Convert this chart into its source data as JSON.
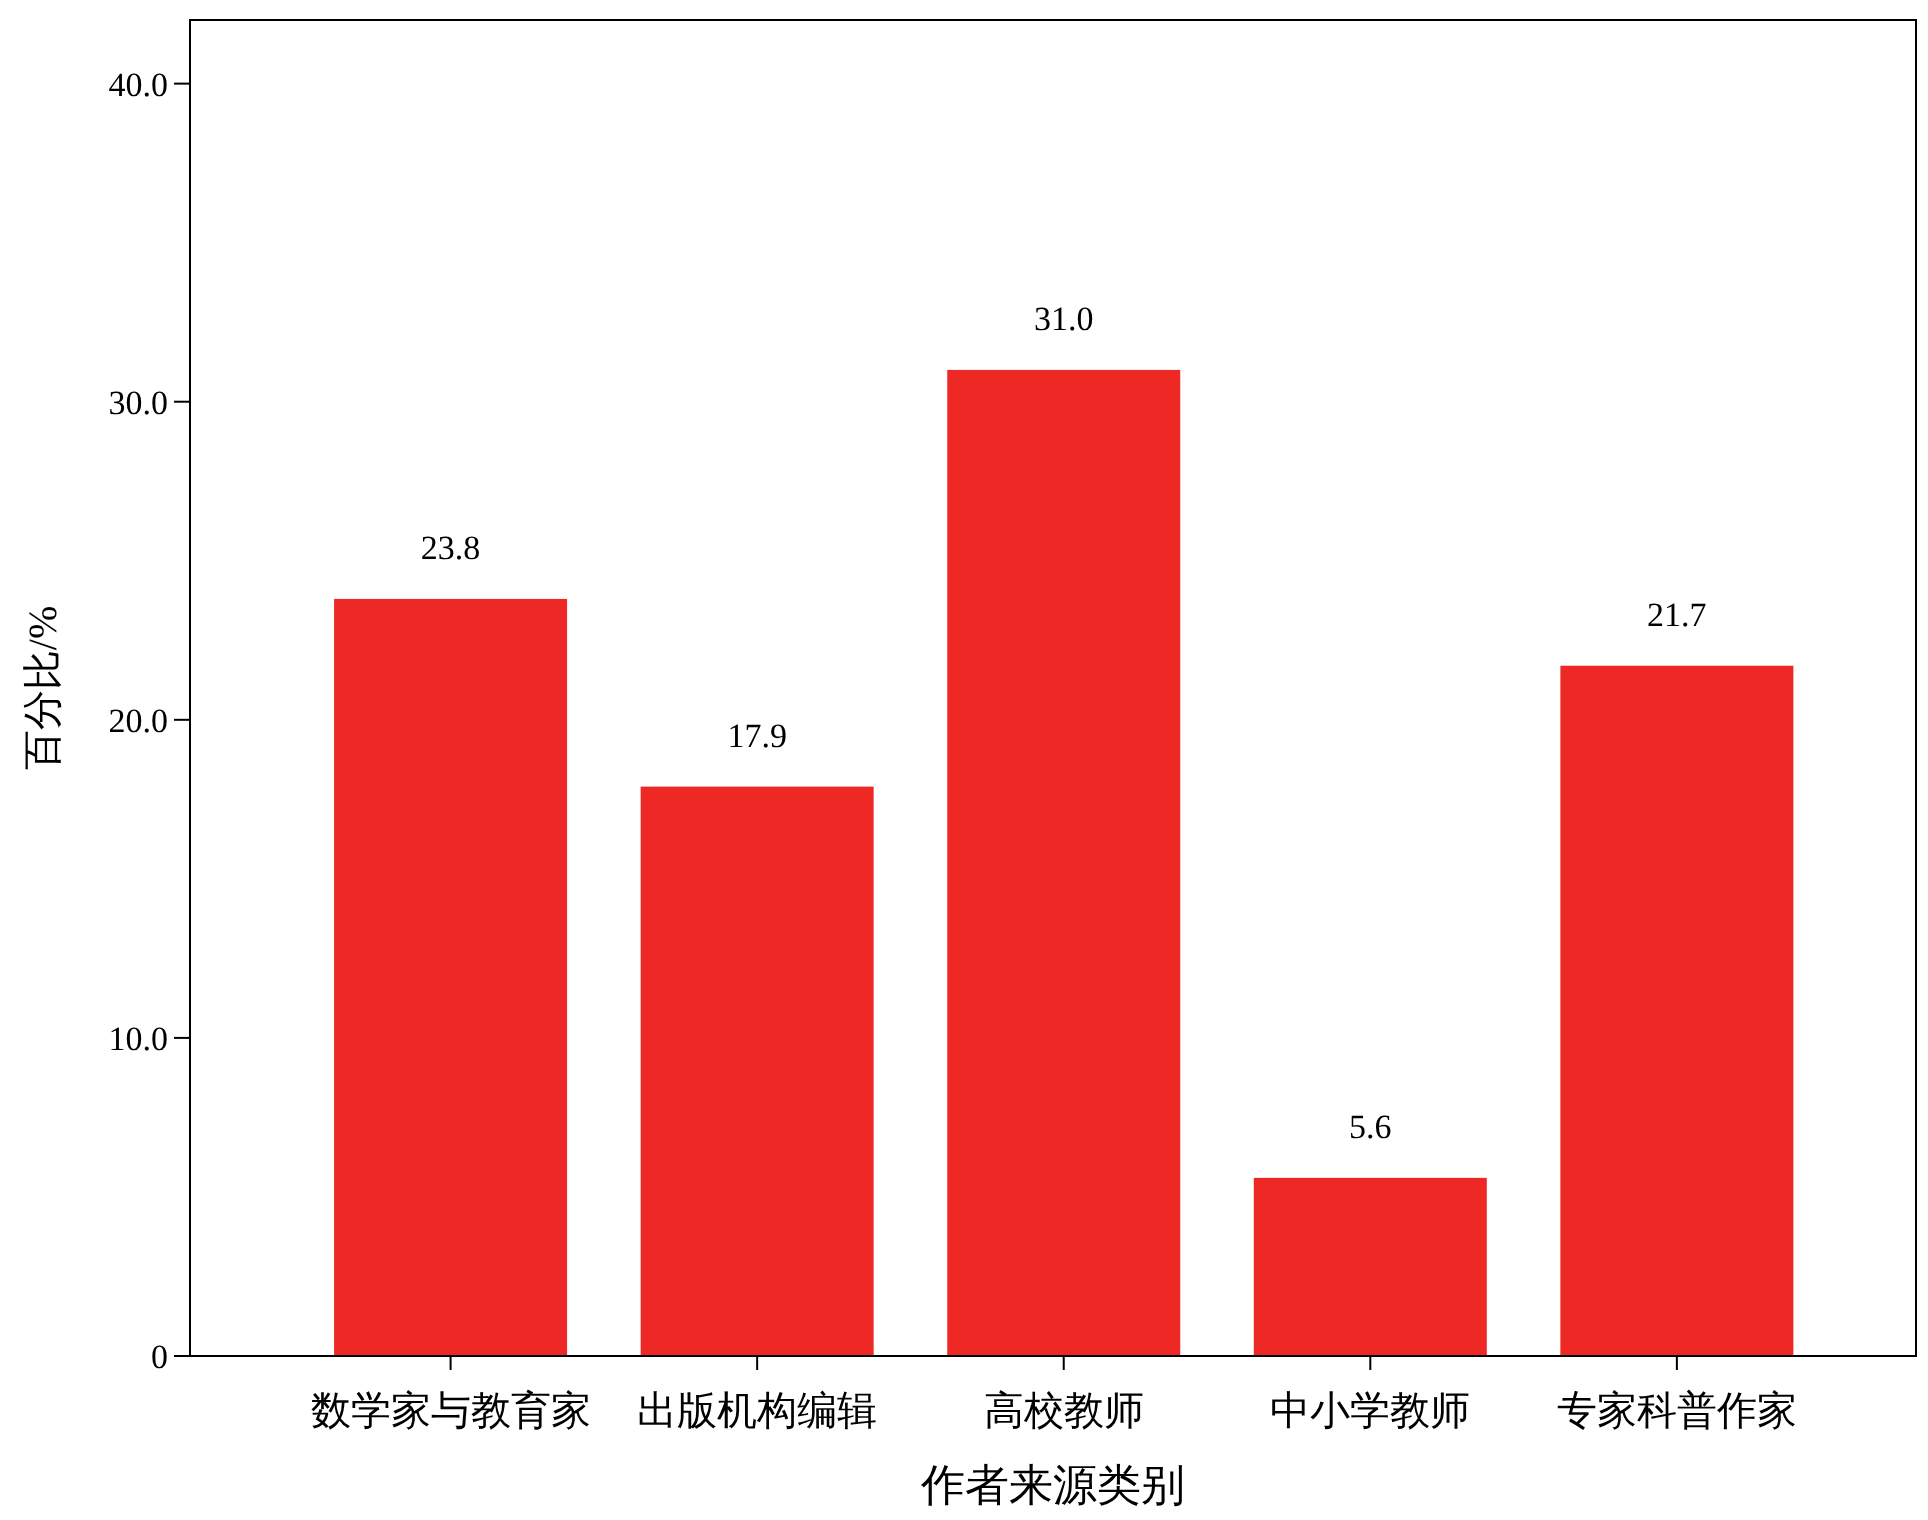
{
  "chart_data": {
    "type": "bar",
    "xlabel": "作者来源类别",
    "ylabel": "百分比/%",
    "categories": [
      "数学家与教育家",
      "出版机构编辑",
      "高校教师",
      "中小学教师",
      "专家科普作家"
    ],
    "values": [
      23.8,
      17.9,
      31.0,
      5.6,
      21.7
    ],
    "color": "#ee2825",
    "ylim": [
      0,
      42
    ],
    "yticks": [
      {
        "value": 0,
        "label": "0"
      },
      {
        "value": 10,
        "label": "10.0"
      },
      {
        "value": 20,
        "label": "20.0"
      },
      {
        "value": 30,
        "label": "30.0"
      },
      {
        "value": 40,
        "label": "40.0"
      }
    ],
    "value_labels": [
      "23.8",
      "17.9",
      "31.0",
      "5.6",
      "21.7"
    ],
    "grid": false
  }
}
